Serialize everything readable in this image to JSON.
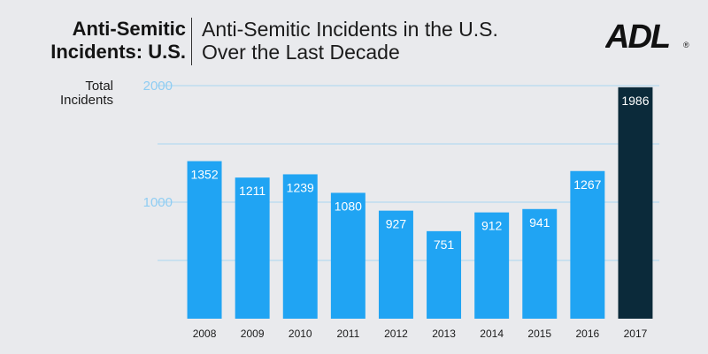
{
  "header": {
    "left_title_line1": "Anti-Semitic",
    "left_title_line2": "Incidents: U.S.",
    "right_title_line1": "Anti-Semitic Incidents in the U.S.",
    "right_title_line2": "Over the Last Decade"
  },
  "logo": {
    "text": "ADL",
    "mark": "®"
  },
  "colors": {
    "bar": "#20a4f3",
    "highlight_bar": "#0b2a3a",
    "tick_label": "#8fcdf3",
    "gridline": "#a9d6f1",
    "background": "#e9eaed"
  },
  "chart_data": {
    "type": "bar",
    "ylabel": "Total Incidents",
    "ylabel_line1": "Total",
    "ylabel_line2": "Incidents",
    "ylim": [
      0,
      2000
    ],
    "yticks": [
      1000,
      2000
    ],
    "grid": true,
    "categories": [
      "2008",
      "2009",
      "2010",
      "2011",
      "2012",
      "2013",
      "2014",
      "2015",
      "2016",
      "2017"
    ],
    "values": [
      1352,
      1211,
      1239,
      1080,
      927,
      751,
      912,
      941,
      1267,
      1986
    ],
    "highlight_index": 9,
    "data_labels": true
  }
}
